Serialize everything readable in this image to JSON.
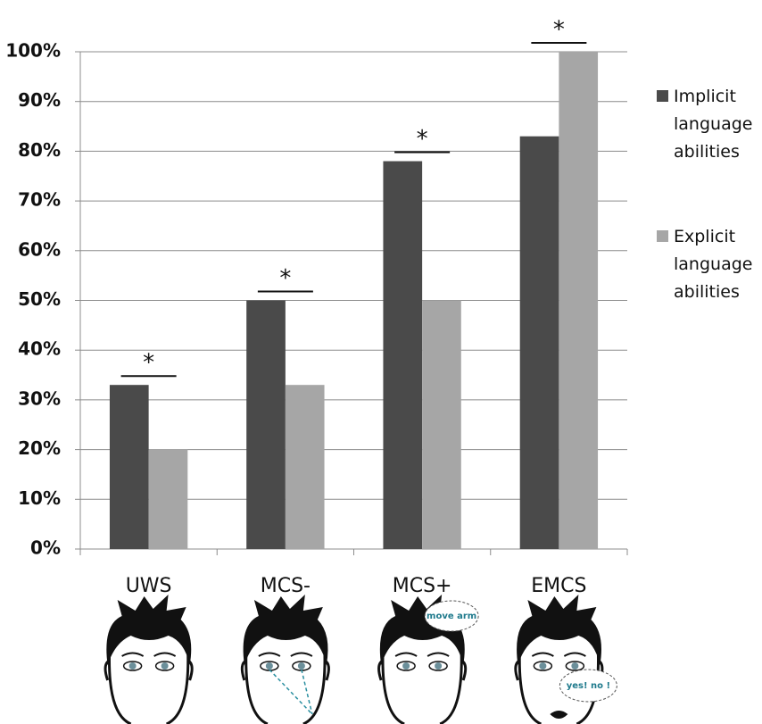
{
  "chart_data": {
    "type": "bar",
    "categories": [
      "UWS",
      "MCS-",
      "MCS+",
      "EMCS"
    ],
    "series": [
      {
        "name": "Implicit language abilities",
        "color": "#4a4a4a",
        "values": [
          33,
          50,
          78,
          83
        ]
      },
      {
        "name": "Explicit language abilities",
        "color": "#a6a6a6",
        "values": [
          20,
          33,
          50,
          100
        ]
      }
    ],
    "ylim": [
      0,
      100
    ],
    "yticks": [
      {
        "value": 0,
        "label": "0%"
      },
      {
        "value": 10,
        "label": "10%"
      },
      {
        "value": 20,
        "label": "20%"
      },
      {
        "value": 30,
        "label": "30%"
      },
      {
        "value": 40,
        "label": "40%"
      },
      {
        "value": 50,
        "label": "50%"
      },
      {
        "value": 60,
        "label": "60%"
      },
      {
        "value": 70,
        "label": "70%"
      },
      {
        "value": 80,
        "label": "80%"
      },
      {
        "value": 90,
        "label": "90%"
      },
      {
        "value": 100,
        "label": "100%"
      }
    ],
    "grid": true,
    "legend": "right",
    "significance": [
      "*",
      "*",
      "*",
      "*"
    ],
    "thought_bubble": "move arm",
    "speech_bubble": "yes! no !"
  }
}
